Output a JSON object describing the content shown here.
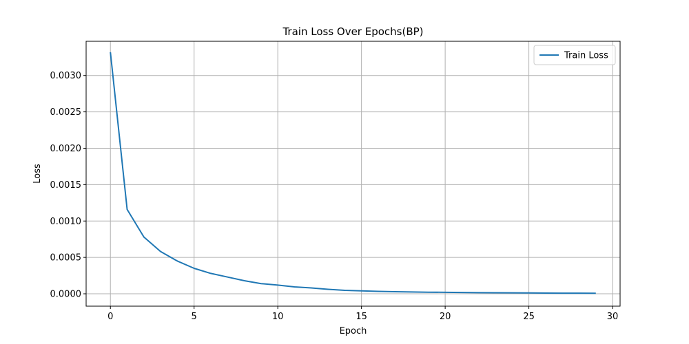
{
  "chart_data": {
    "type": "line",
    "title": "Train Loss Over Epochs(BP)",
    "xlabel": "Epoch",
    "ylabel": "Loss",
    "xlim": [
      -1.45,
      30.45
    ],
    "ylim": [
      -0.00017,
      0.00347
    ],
    "xticks": [
      0,
      5,
      10,
      15,
      20,
      25,
      30
    ],
    "xtick_labels": [
      "0",
      "5",
      "10",
      "15",
      "20",
      "25",
      "30"
    ],
    "yticks": [
      0.0,
      0.0005,
      0.001,
      0.0015,
      0.002,
      0.0025,
      0.003
    ],
    "ytick_labels": [
      "0.0000",
      "0.0005",
      "0.0010",
      "0.0015",
      "0.0020",
      "0.0025",
      "0.0030"
    ],
    "grid": true,
    "legend_position": "top-right",
    "series": [
      {
        "name": "Train Loss",
        "color": "#1f77b4",
        "x": [
          0,
          1,
          2,
          3,
          4,
          5,
          6,
          7,
          8,
          9,
          10,
          11,
          12,
          13,
          14,
          15,
          16,
          17,
          18,
          19,
          20,
          21,
          22,
          23,
          24,
          25,
          26,
          27,
          28,
          29
        ],
        "y": [
          0.00332,
          0.00116,
          0.00078,
          0.00058,
          0.00045,
          0.00035,
          0.00028,
          0.00023,
          0.00018,
          0.00014,
          0.00012,
          9.5e-05,
          8e-05,
          6.2e-05,
          4.8e-05,
          4e-05,
          3.3e-05,
          2.8e-05,
          2.5e-05,
          2.2e-05,
          2e-05,
          1.8e-05,
          1.6e-05,
          1.4e-05,
          1.3e-05,
          1.2e-05,
          1e-05,
          9e-06,
          8e-06,
          7e-06
        ]
      }
    ]
  }
}
